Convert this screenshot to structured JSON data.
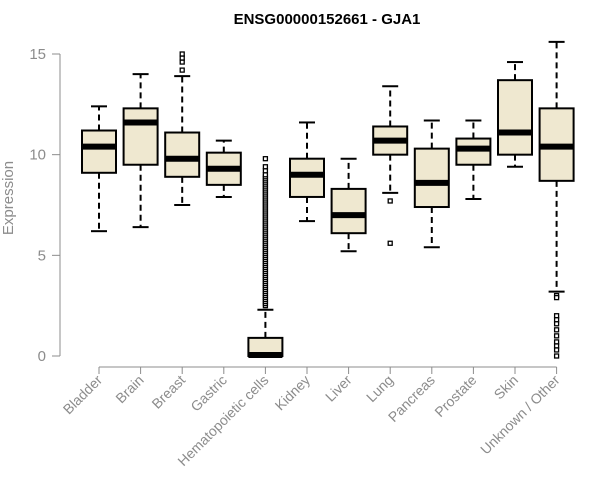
{
  "chart_data": {
    "type": "box",
    "title": "ENSG00000152661 - GJA1",
    "xlabel": "",
    "ylabel": "Expression",
    "ylim": [
      0,
      15
    ],
    "yticks": [
      0,
      5,
      10,
      15
    ],
    "box_fill": "#efe8d0",
    "categories": [
      "Bladder",
      "Brain",
      "Breast",
      "Gastric",
      "Hematopoietic cells",
      "Kidney",
      "Liver",
      "Lung",
      "Pancreas",
      "Prostate",
      "Skin",
      "Unknown / Other"
    ],
    "series": [
      {
        "name": "Bladder",
        "whisker_low": 6.2,
        "q1": 9.1,
        "median": 10.4,
        "q3": 11.2,
        "whisker_high": 12.4,
        "outliers": []
      },
      {
        "name": "Brain",
        "whisker_low": 6.4,
        "q1": 9.5,
        "median": 11.6,
        "q3": 12.3,
        "whisker_high": 14.0,
        "outliers": []
      },
      {
        "name": "Breast",
        "whisker_low": 7.5,
        "q1": 8.9,
        "median": 9.8,
        "q3": 11.1,
        "whisker_high": 13.9,
        "outliers": [
          14.2,
          14.6,
          14.8,
          15.0
        ]
      },
      {
        "name": "Gastric",
        "whisker_low": 7.9,
        "q1": 8.5,
        "median": 9.3,
        "q3": 10.1,
        "whisker_high": 10.7,
        "outliers": []
      },
      {
        "name": "Hematopoietic cells",
        "whisker_low": 0.0,
        "q1": 0.0,
        "median": 0.05,
        "q3": 0.9,
        "whisker_high": 2.3,
        "outliers": [
          2.5,
          2.6,
          2.7,
          2.8,
          2.9,
          3.0,
          3.1,
          3.2,
          3.3,
          3.4,
          3.5,
          3.6,
          3.7,
          3.8,
          3.9,
          4.0,
          4.1,
          4.2,
          4.3,
          4.4,
          4.5,
          4.6,
          4.7,
          4.8,
          4.9,
          5.0,
          5.1,
          5.2,
          5.3,
          5.4,
          5.5,
          5.6,
          5.7,
          5.8,
          5.9,
          6.0,
          6.1,
          6.2,
          6.3,
          6.4,
          6.5,
          6.6,
          6.7,
          6.8,
          6.9,
          7.0,
          7.1,
          7.2,
          7.3,
          7.4,
          7.5,
          7.6,
          7.7,
          7.8,
          7.9,
          8.0,
          8.1,
          8.2,
          8.3,
          8.4,
          8.5,
          8.6,
          8.7,
          8.8,
          8.9,
          9.0,
          9.2,
          9.4,
          9.8
        ]
      },
      {
        "name": "Kidney",
        "whisker_low": 6.7,
        "q1": 7.9,
        "median": 9.0,
        "q3": 9.8,
        "whisker_high": 11.6,
        "outliers": []
      },
      {
        "name": "Liver",
        "whisker_low": 5.2,
        "q1": 6.1,
        "median": 7.0,
        "q3": 8.3,
        "whisker_high": 9.8,
        "outliers": []
      },
      {
        "name": "Lung",
        "whisker_low": 8.1,
        "q1": 10.0,
        "median": 10.7,
        "q3": 11.4,
        "whisker_high": 13.4,
        "outliers": [
          7.7,
          5.6
        ]
      },
      {
        "name": "Pancreas",
        "whisker_low": 5.4,
        "q1": 7.4,
        "median": 8.6,
        "q3": 10.3,
        "whisker_high": 11.7,
        "outliers": []
      },
      {
        "name": "Prostate",
        "whisker_low": 7.8,
        "q1": 9.5,
        "median": 10.3,
        "q3": 10.8,
        "whisker_high": 11.7,
        "outliers": []
      },
      {
        "name": "Skin",
        "whisker_low": 9.4,
        "q1": 10.0,
        "median": 11.1,
        "q3": 13.7,
        "whisker_high": 14.6,
        "outliers": []
      },
      {
        "name": "Unknown / Other",
        "whisker_low": 3.2,
        "q1": 8.7,
        "median": 10.4,
        "q3": 12.3,
        "whisker_high": 15.6,
        "outliers": [
          3.0,
          2.9,
          2.0,
          1.8,
          1.6,
          1.3,
          1.0,
          0.7,
          0.5,
          0.3,
          0.0
        ]
      }
    ]
  }
}
